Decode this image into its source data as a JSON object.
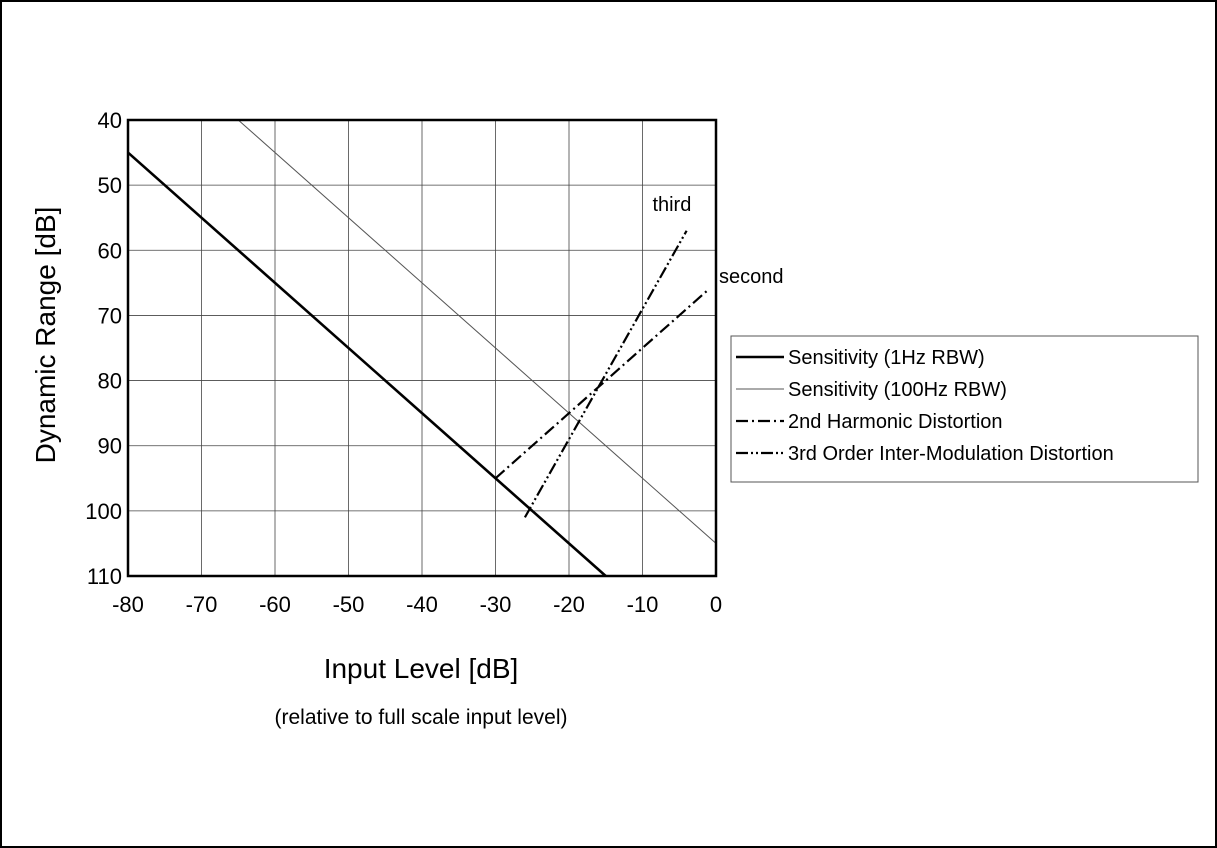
{
  "chart_data": {
    "type": "line",
    "xlabel": "Input Level [dB]",
    "xlabel_note": "(relative to full scale input level)",
    "ylabel": "Dynamic Range [dB]",
    "xlim": [
      -80,
      0
    ],
    "ylim": [
      40,
      110
    ],
    "y_inverted": true,
    "x_ticks": [
      -80,
      -70,
      -60,
      -50,
      -40,
      -30,
      -20,
      -10,
      0
    ],
    "y_ticks": [
      40,
      50,
      60,
      70,
      80,
      90,
      100,
      110
    ],
    "x_tick_labels": [
      "-80",
      "-70",
      "-60",
      "-50",
      "-40",
      "-30",
      "-20",
      "-10",
      "0"
    ],
    "y_tick_labels": [
      "40",
      "50",
      "60",
      "70",
      "80",
      "90",
      "100",
      "110"
    ],
    "grid": true,
    "legend_position": "right",
    "series": [
      {
        "name": "Sensitivity (1Hz RBW)",
        "style": "solid-thick",
        "color": "#000000",
        "x": [
          -80,
          -15
        ],
        "y": [
          45,
          110
        ]
      },
      {
        "name": "Sensitivity (100Hz RBW)",
        "style": "solid-thin",
        "color": "#555555",
        "x": [
          -65,
          0
        ],
        "y": [
          40,
          105
        ]
      },
      {
        "name": "2nd Harmonic Distortion",
        "style": "dash-dot",
        "color": "#000000",
        "x": [
          -30,
          -1
        ],
        "y": [
          95,
          66
        ]
      },
      {
        "name": "3rd Order Inter-Modulation Distortion",
        "style": "dash-dot-dot",
        "color": "#000000",
        "x": [
          -26,
          -4
        ],
        "y": [
          101,
          57
        ]
      }
    ],
    "annotations": [
      {
        "text": "third",
        "x": -6,
        "y": 54
      },
      {
        "text": "second",
        "x": 0,
        "y": 65
      }
    ]
  }
}
